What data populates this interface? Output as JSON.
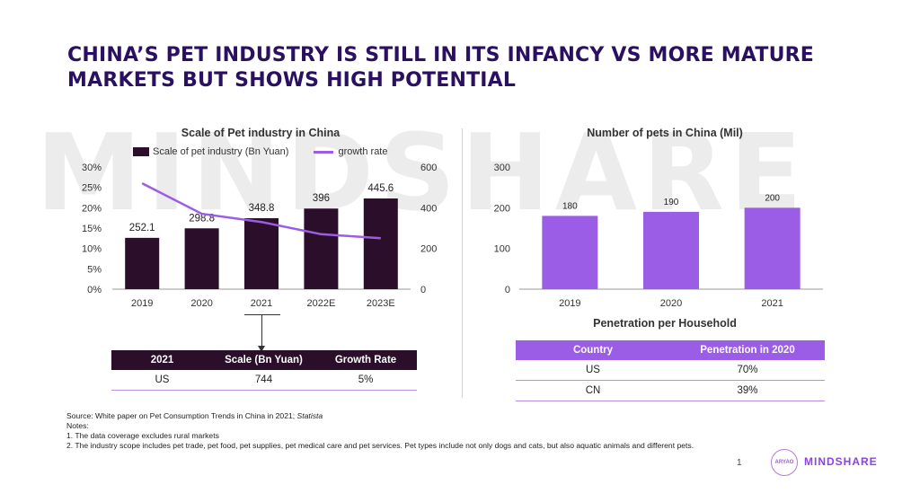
{
  "title": "CHINA’S PET INDUSTRY IS STILL IN ITS INFANCY VS MORE MATURE MARKETS BUT SHOWS HIGH POTENTIAL",
  "watermark": "MINDSHARE",
  "chart1": {
    "title": "Scale of Pet industry in China",
    "legend_bar": "Scale of pet industry (Bn Yuan)",
    "legend_line": "growth rate",
    "bar_color": "#2b0f2a",
    "line_color": "#9b5de5"
  },
  "chart2": {
    "title": "Number of pets in China (Mil)",
    "bar_color": "#9b5de5"
  },
  "table1": {
    "headers": [
      "2021",
      "Scale (Bn Yuan)",
      "Growth Rate"
    ],
    "rows": [
      [
        "US",
        "744",
        "5%"
      ]
    ]
  },
  "table2": {
    "title": "Penetration per Household",
    "headers": [
      "Country",
      "Penetration in 2020"
    ],
    "rows": [
      [
        "US",
        "70%"
      ],
      [
        "CN",
        "39%"
      ]
    ]
  },
  "notes": {
    "source_prefix": "Source: White paper on Pet Consumption Trends in China in 2021; ",
    "source_italic": "Statista",
    "heading": "Notes:",
    "items": [
      "1. The data coverage excludes rural markets",
      "2. The industry scope includes pet trade, pet food, pet supplies, pet medical care and pet services. Pet types include not only dogs and cats, but also aquatic animals and different pets."
    ]
  },
  "footer": {
    "page": "1",
    "logo_text": "ARYAO",
    "brand": "MINDSHARE"
  },
  "chart_data": [
    {
      "type": "bar",
      "title": "Scale of Pet industry in China",
      "categories": [
        "2019",
        "2020",
        "2021",
        "2022E",
        "2023E"
      ],
      "series": [
        {
          "name": "Scale of pet industry (Bn Yuan)",
          "type": "bar",
          "axis": "right",
          "values": [
            252.1,
            298.8,
            348.8,
            396,
            445.6
          ],
          "labels": [
            "252.1",
            "298.8",
            "348.8",
            "396",
            "445.6"
          ]
        },
        {
          "name": "growth rate",
          "type": "line",
          "axis": "left",
          "values": [
            26,
            18.5,
            16.5,
            13.5,
            12.5
          ]
        }
      ],
      "y_left": {
        "ticks": [
          "0%",
          "5%",
          "10%",
          "15%",
          "20%",
          "25%",
          "30%"
        ],
        "range": [
          0,
          30
        ]
      },
      "y_right": {
        "ticks": [
          "0",
          "200",
          "400",
          "600"
        ],
        "range": [
          0,
          600
        ]
      },
      "grid": false,
      "legend": "top"
    },
    {
      "type": "bar",
      "title": "Number of pets in China (Mil)",
      "categories": [
        "2019",
        "2020",
        "2021"
      ],
      "values": [
        180,
        190,
        200
      ],
      "labels": [
        "180",
        "190",
        "200"
      ],
      "y": {
        "ticks": [
          "0",
          "100",
          "200",
          "300"
        ],
        "range": [
          0,
          300
        ]
      },
      "grid": false
    }
  ]
}
